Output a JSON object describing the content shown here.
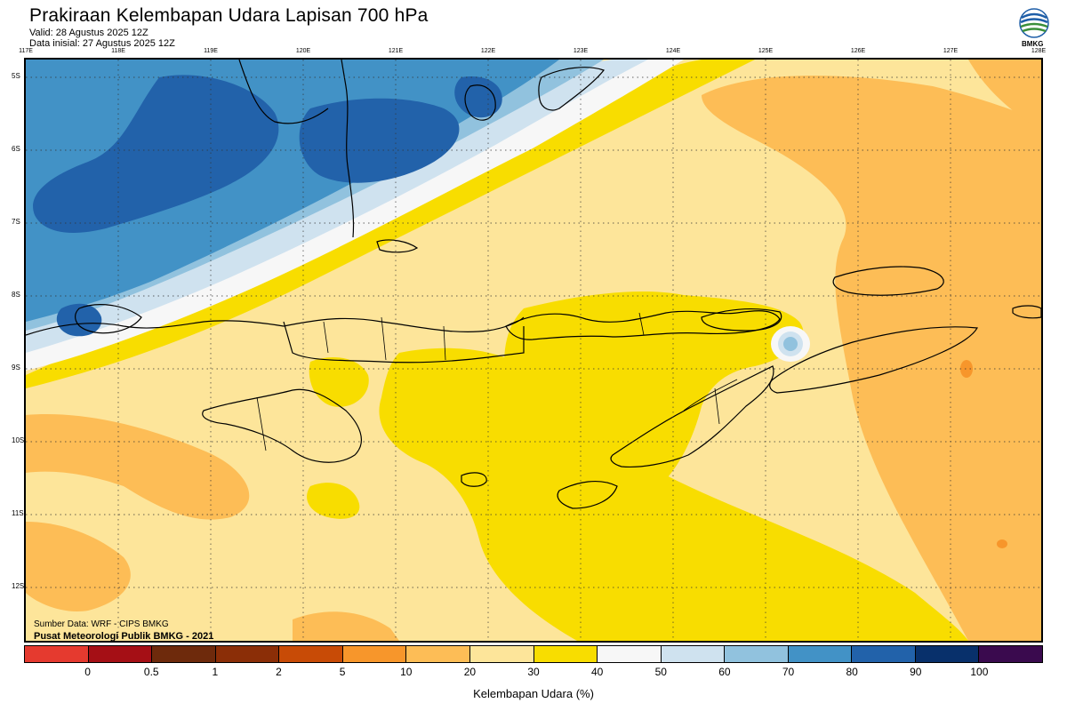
{
  "header": {
    "title": "Prakiraan Kelembapan Udara Lapisan 700 hPa",
    "valid": "Valid: 28 Agustus 2025 12Z",
    "initial": "Data inisial: 27 Agustus 2025 12Z",
    "logo_text": "BMKG"
  },
  "map": {
    "lon_labels": [
      "117E",
      "118E",
      "119E",
      "120E",
      "121E",
      "122E",
      "123E",
      "124E",
      "125E",
      "126E",
      "127E",
      "128E"
    ],
    "lat_labels": [
      "5S",
      "6S",
      "7S",
      "8S",
      "9S",
      "10S",
      "11S",
      "12S"
    ],
    "credit_source": "Sumber Data: WRF - CIPS BMKG",
    "credit_center": "Pusat Meteorologi Publik BMKG - 2021",
    "background_color": "#fde59a"
  },
  "colorbar": {
    "title": "Kelembapan Udara (%)",
    "tick_labels": [
      "0",
      "0.5",
      "1",
      "2",
      "5",
      "10",
      "20",
      "30",
      "40",
      "50",
      "60",
      "70",
      "80",
      "90",
      "100"
    ],
    "colors": [
      "#e53a2f",
      "#a50f15",
      "#6e2a0c",
      "#8b2e07",
      "#c84b06",
      "#f7962b",
      "#fdbd56",
      "#fde59a",
      "#f8dd00",
      "#f7f7f7",
      "#cfe2ef",
      "#91c2de",
      "#4292c6",
      "#2262aa",
      "#08306b",
      "#3a0a4e"
    ]
  }
}
